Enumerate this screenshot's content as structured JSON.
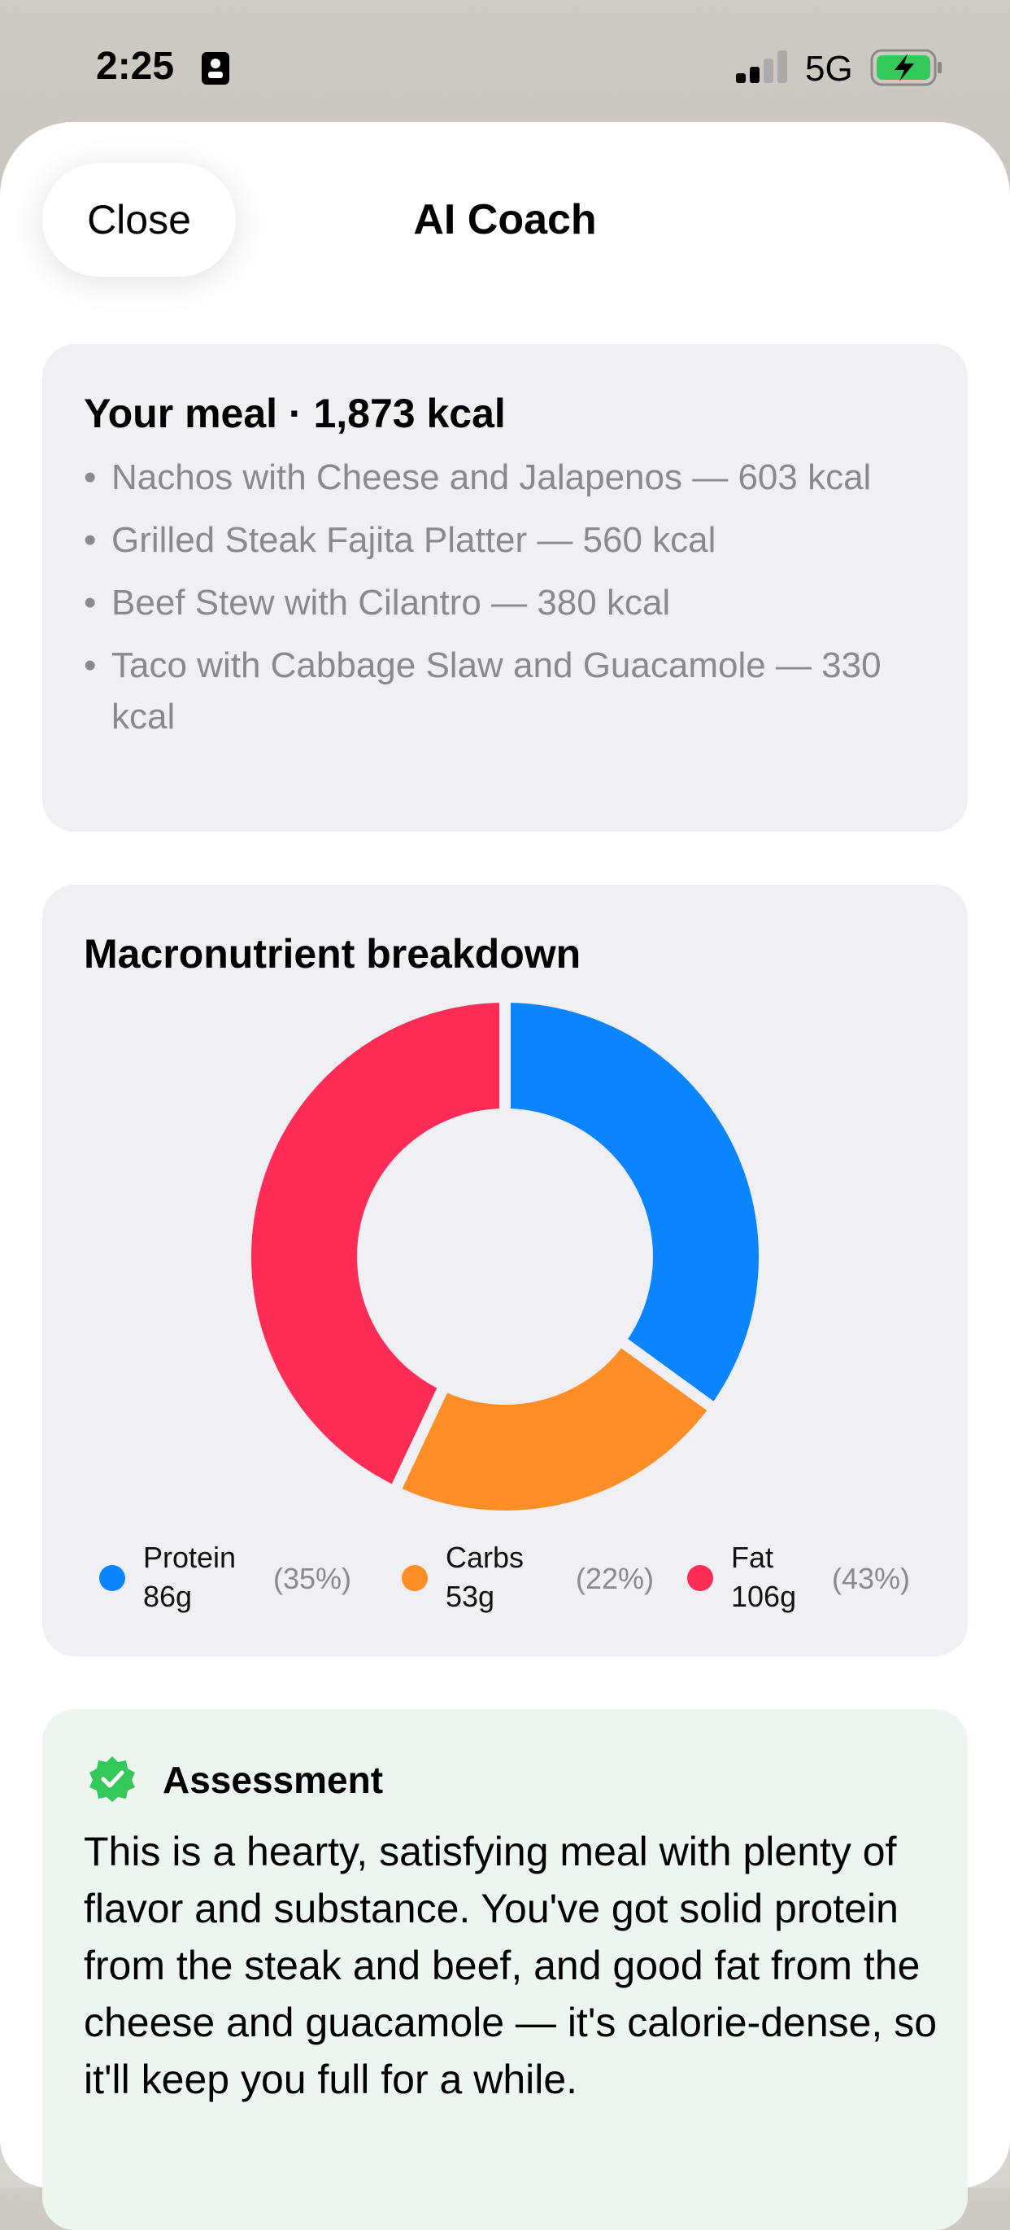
{
  "status_bar": {
    "time": "2:25",
    "network": "5G"
  },
  "header": {
    "close": "Close",
    "title": "AI Coach"
  },
  "meal": {
    "heading": "Your meal · 1,873 kcal",
    "items": [
      "Nachos with Cheese and Jalapenos — 603 kcal",
      "Grilled Steak Fajita Platter — 560 kcal",
      "Beef Stew with Cilantro — 380 kcal",
      "Taco with Cabbage Slaw and Guacamole — 330 kcal"
    ]
  },
  "chart_data": {
    "type": "pie",
    "donut": true,
    "title": "Macronutrient breakdown",
    "categories": [
      "Protein",
      "Carbs",
      "Fat"
    ],
    "amounts": [
      "86g",
      "53g",
      "106g"
    ],
    "values": [
      35,
      22,
      43
    ],
    "value_labels": [
      "(35%)",
      "(22%)",
      "(43%)"
    ],
    "colors": [
      "#0a84ff",
      "#ff8d28",
      "#ff2d55"
    ]
  },
  "assessment": {
    "title": "Assessment",
    "text": "This is a hearty, satisfying meal with plenty of flavor and substance. You've got solid protein from the steak and beef, and good fat from the cheese and guacamole — it's calorie-dense, so it'll keep you full for a while."
  }
}
